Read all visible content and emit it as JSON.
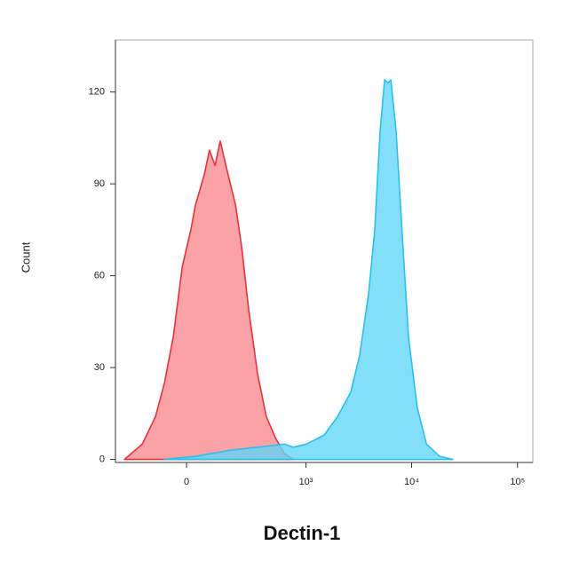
{
  "chart_data": {
    "type": "histogram-overlay",
    "xlabel": "Dectin-1",
    "ylabel": "Count",
    "xscale": "biexponential",
    "xlim": [
      -336,
      139500
    ],
    "ylim": [
      -1,
      137
    ],
    "xticks": [
      0,
      {
        "value": 1000,
        "label": "10³"
      },
      {
        "value": 10000,
        "label": "10⁴"
      },
      {
        "value": 100000,
        "label": "10⁵"
      }
    ],
    "yticks": [
      0,
      30,
      60,
      90,
      120
    ],
    "series": [
      {
        "color": "#e8323c",
        "fill": "#f98b8e",
        "x": [
          -270,
          -168,
          -109,
          -75,
          -44,
          -14,
          14,
          29,
          59,
          78,
          99,
          120,
          148,
          192,
          227,
          270,
          335,
          412,
          507,
          618,
          753
        ],
        "values": [
          0,
          5,
          14,
          25,
          40,
          63,
          75,
          83,
          93,
          101,
          96,
          104,
          95,
          83,
          69,
          49,
          28,
          14,
          7,
          2,
          0
        ]
      },
      {
        "color": "#2bbfee",
        "fill": "#63d6f8",
        "x": [
          -75,
          29,
          168,
          335,
          618,
          753,
          1011,
          1491,
          1995,
          2660,
          3230,
          3920,
          4490,
          5040,
          5560,
          6000,
          6360,
          7140,
          8010,
          9350,
          11300,
          13800,
          18400,
          24600
        ],
        "values": [
          0,
          1,
          3,
          4,
          5,
          4,
          5,
          8,
          14,
          22,
          34,
          54,
          75,
          107,
          124,
          123,
          124,
          107,
          78,
          40,
          17,
          5,
          1,
          0
        ]
      }
    ]
  }
}
